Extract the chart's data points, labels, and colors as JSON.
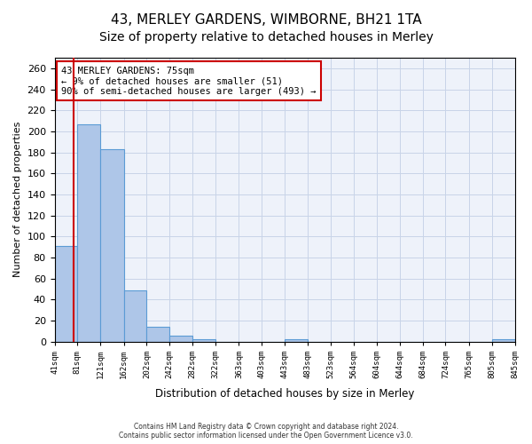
{
  "title1": "43, MERLEY GARDENS, WIMBORNE, BH21 1TA",
  "title2": "Size of property relative to detached houses in Merley",
  "xlabel": "Distribution of detached houses by size in Merley",
  "ylabel": "Number of detached properties",
  "annotation_title": "43 MERLEY GARDENS: 75sqm",
  "annotation_line2": "← 9% of detached houses are smaller (51)",
  "annotation_line3": "90% of semi-detached houses are larger (493) →",
  "footer1": "Contains HM Land Registry data © Crown copyright and database right 2024.",
  "footer2": "Contains public sector information licensed under the Open Government Licence v3.0.",
  "bar_edges": [
    41,
    81,
    121,
    162,
    202,
    242,
    282,
    322,
    363,
    403,
    443,
    483,
    523,
    564,
    604,
    644,
    684,
    724,
    765,
    805,
    845
  ],
  "bar_values": [
    91,
    207,
    183,
    49,
    14,
    6,
    2,
    0,
    0,
    0,
    2,
    0,
    0,
    0,
    0,
    0,
    0,
    0,
    0,
    2
  ],
  "bar_color": "#aec6e8",
  "bar_edge_color": "#5b9bd5",
  "red_line_x": 75,
  "ylim": [
    0,
    270
  ],
  "yticks": [
    0,
    20,
    40,
    60,
    80,
    100,
    120,
    140,
    160,
    180,
    200,
    220,
    240,
    260
  ],
  "bg_color": "#eef2fa",
  "grid_color": "#c8d4e8",
  "annotation_box_color": "#ffffff",
  "annotation_box_edge": "#cc0000",
  "red_line_color": "#cc0000",
  "title1_fontsize": 11,
  "title2_fontsize": 10
}
